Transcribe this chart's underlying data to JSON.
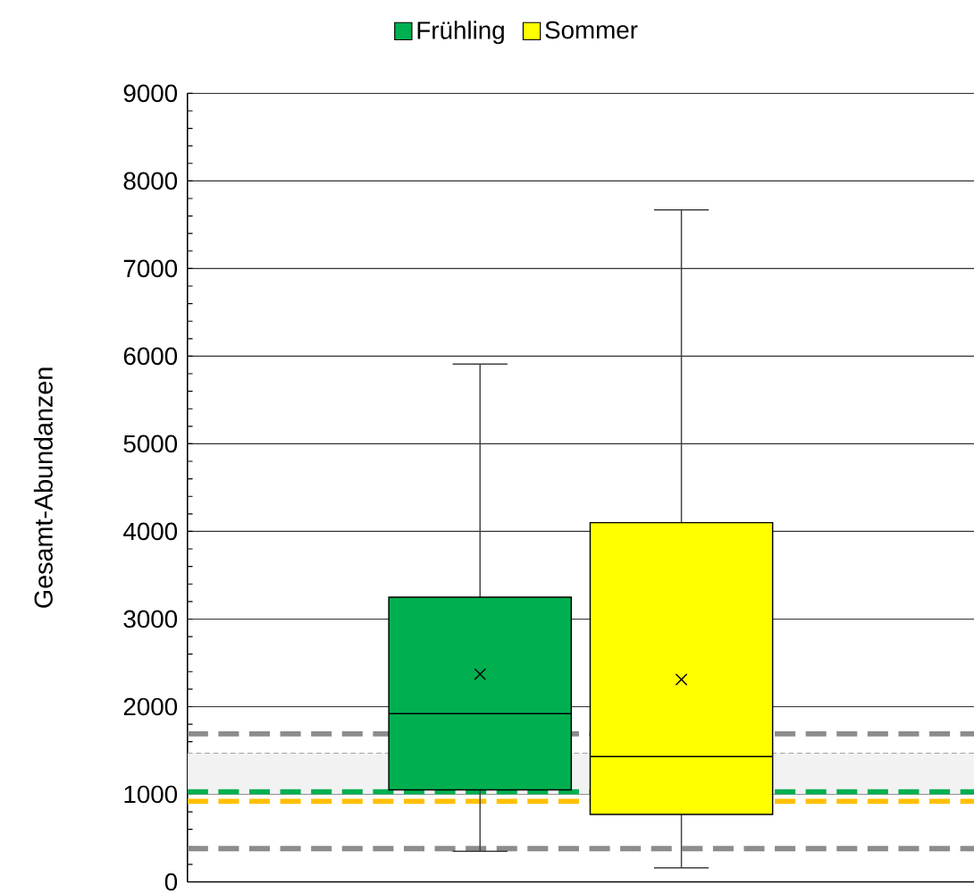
{
  "chart_data": {
    "type": "box",
    "ylabel": "Gesamt-Abundanzen",
    "categories": [
      null
    ],
    "series": [
      {
        "name": "Frühling",
        "color": "#00b050",
        "boxes": [
          {
            "low": 350,
            "q1": 1050,
            "median": 1920,
            "q3": 3250,
            "high": 5910,
            "mean": 2370
          }
        ]
      },
      {
        "name": "Sommer",
        "color": "#ffff00",
        "boxes": [
          {
            "low": 160,
            "q1": 770,
            "median": 1430,
            "q3": 4100,
            "high": 7670,
            "mean": 2310
          }
        ]
      }
    ],
    "ylim": [
      0,
      9000
    ],
    "yticks": [
      0,
      1000,
      2000,
      3000,
      4000,
      5000,
      6000,
      7000,
      8000,
      9000
    ],
    "grid": "y",
    "legend": "top",
    "bands": [
      {
        "axis": "y",
        "from": 1000,
        "to": 1470,
        "color": "#f2f2f2"
      }
    ],
    "ref_lines": [
      {
        "axis": "y",
        "value": 1690,
        "color": "#8c8c8c",
        "line_style": "dashed"
      },
      {
        "axis": "y",
        "value": 380,
        "color": "#8c8c8c",
        "line_style": "dashed"
      },
      {
        "axis": "y",
        "value": 1470,
        "color": "#a6a6a6",
        "line_style": "dotted"
      },
      {
        "axis": "y",
        "value": 1030,
        "color": "#00b050",
        "line_style": "dashed"
      },
      {
        "axis": "y",
        "value": 920,
        "color": "#ffc000",
        "line_style": "dashed"
      }
    ]
  }
}
